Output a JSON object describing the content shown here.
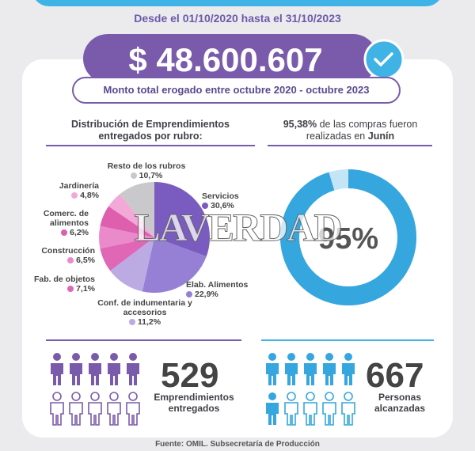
{
  "header": {
    "date_range": "Desde el 01/10/2020 hasta el 31/10/2023"
  },
  "total": {
    "amount": "$ 48.600.607",
    "caption": "Monto total erogado entre octubre 2020 - octubre 2023"
  },
  "watermark": "LAVERDAD",
  "chart_data": [
    {
      "type": "pie",
      "title": "Distribución de Emprendimientos entregados por rubro:",
      "categories": [
        "Servicios",
        "Elab. Alimentos",
        "Conf. de indumentaria y accesorios",
        "Fab. de objetos",
        "Construcción",
        "Comerc. de alimentos",
        "Jardinería",
        "Resto de los rubros"
      ],
      "values": [
        30.6,
        22.9,
        11.2,
        7.1,
        6.5,
        6.2,
        4.8,
        10.7
      ],
      "value_labels": [
        "30,6%",
        "22,9%",
        "11,2%",
        "7,1%",
        "6,5%",
        "6,2%",
        "4,8%",
        "10,7%"
      ],
      "colors": [
        "#7a5bbf",
        "#9580d6",
        "#bcaae3",
        "#e066b6",
        "#ea8acb",
        "#de5fae",
        "#f2a9d8",
        "#c9c9cc"
      ]
    },
    {
      "type": "donut",
      "title_highlight": "95,38%",
      "title": "de las compras fueron realizadas en",
      "title_place": "Junín",
      "values": [
        95.38
      ],
      "value_labels": [
        "95%"
      ],
      "color": "#35a6de"
    }
  ],
  "stats": [
    {
      "number": 529,
      "label": "Emprendimientos entregados"
    },
    {
      "number": 667,
      "label": "Personas alcanzadas"
    }
  ],
  "source": "Fuente: OMIL. Subsecretaría de Producción"
}
